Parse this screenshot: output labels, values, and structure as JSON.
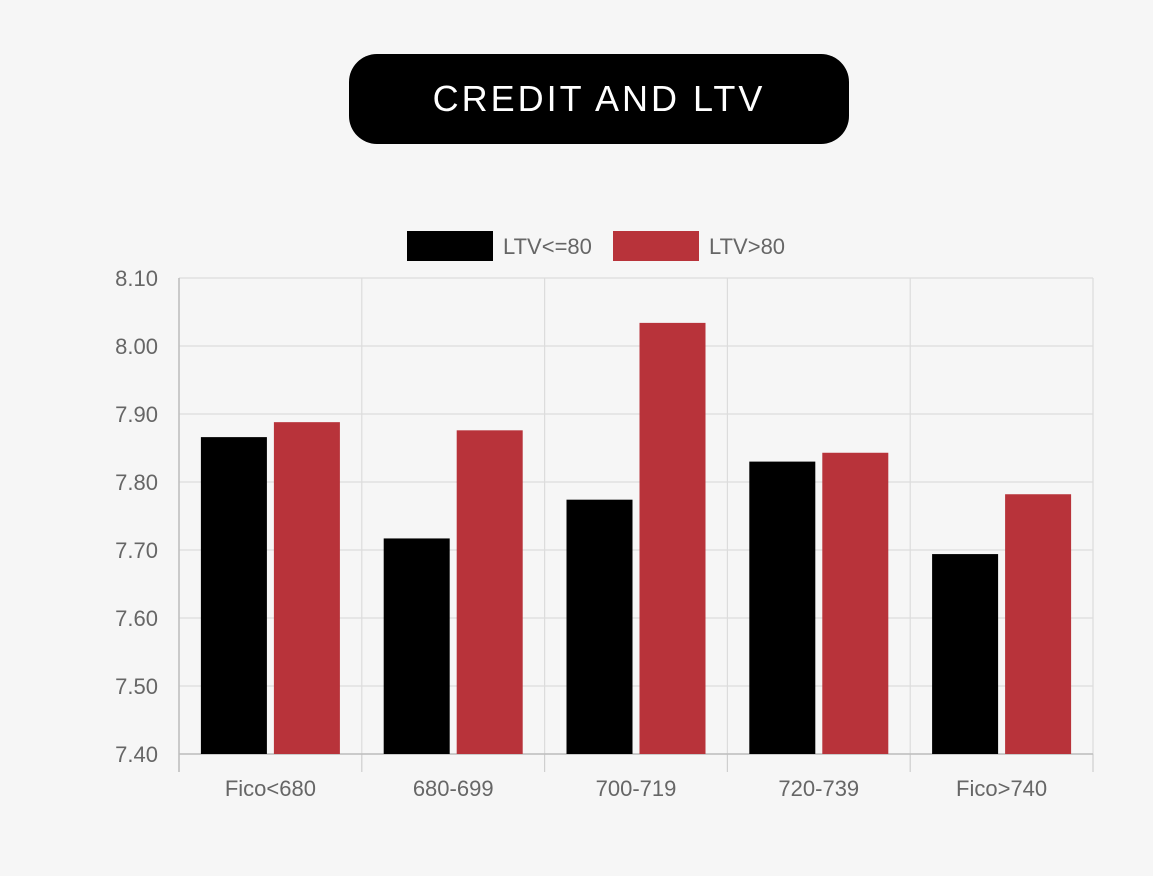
{
  "title": "CREDIT AND LTV",
  "chart_data": {
    "type": "bar",
    "categories": [
      "Fico<680",
      "680-699",
      "700-719",
      "720-739",
      "Fico>740"
    ],
    "series": [
      {
        "name": "LTV<=80",
        "color": "#000000",
        "values": [
          7.866,
          7.717,
          7.774,
          7.83,
          7.694
        ]
      },
      {
        "name": "LTV>80",
        "color": "#b8333a",
        "values": [
          7.888,
          7.876,
          8.034,
          7.843,
          7.782
        ]
      }
    ],
    "ylim": [
      7.4,
      8.1
    ],
    "yticks": [
      "8.10",
      "8.00",
      "7.90",
      "7.80",
      "7.70",
      "7.60",
      "7.50",
      "7.40"
    ],
    "grid": true,
    "legend_position": "top-center"
  }
}
